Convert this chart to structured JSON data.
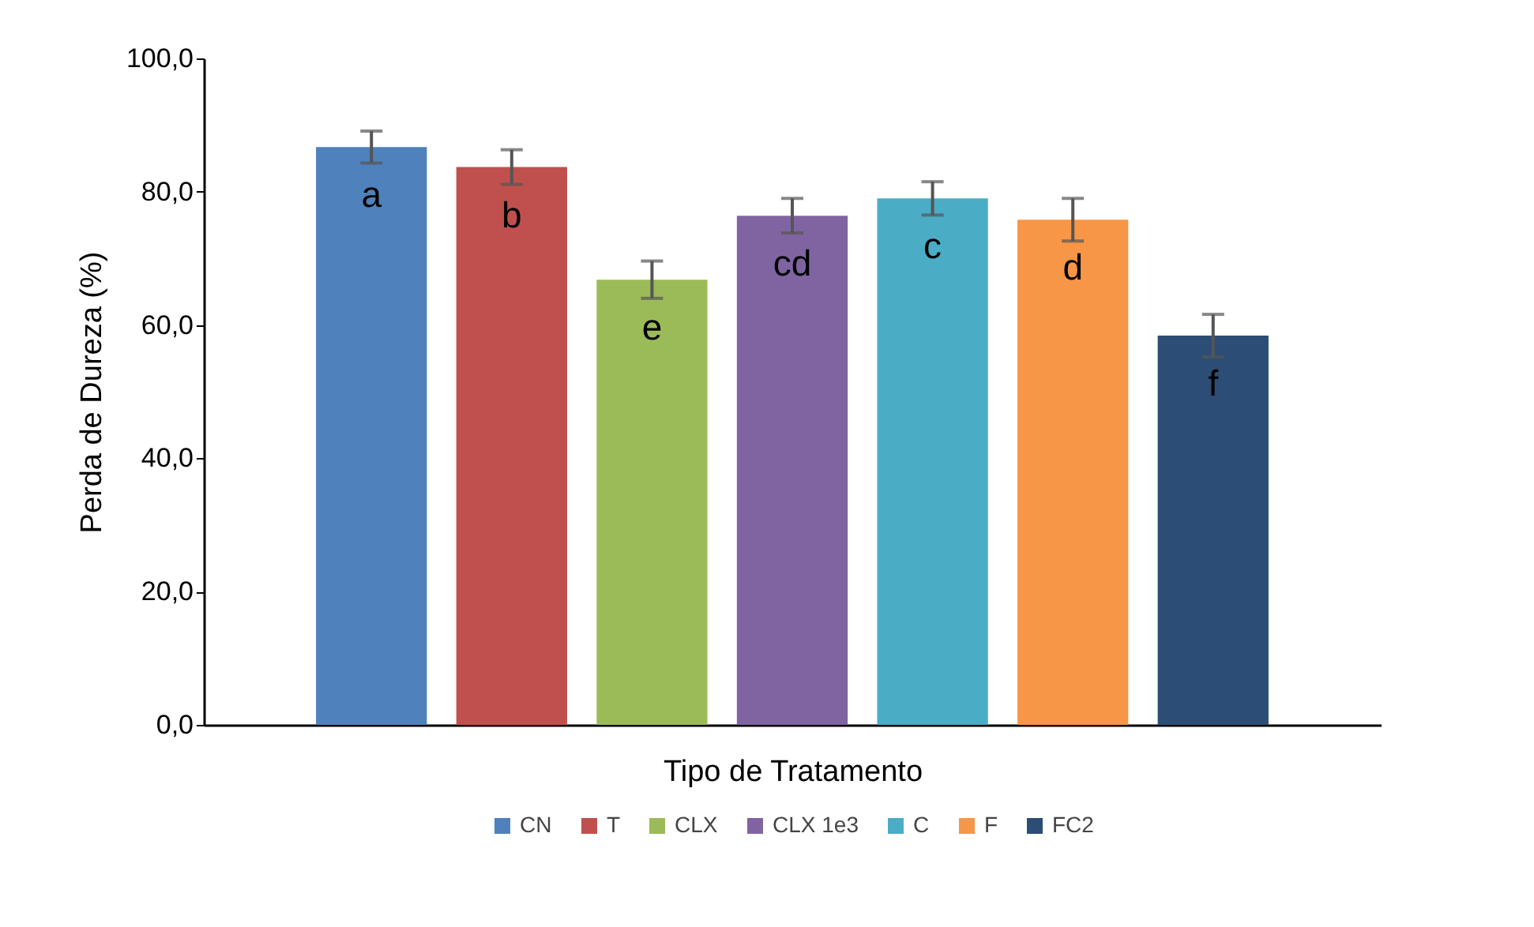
{
  "chart_data": {
    "type": "bar",
    "xlabel": "Tipo de Tratamento",
    "ylabel": "Perda de Dureza (%)",
    "categories": [
      null,
      null,
      null,
      null,
      null,
      null,
      null
    ],
    "series": [
      {
        "name": "CN",
        "color": "#4f81bd",
        "values": [
          86.7,
          null,
          null,
          null,
          null,
          null,
          null
        ],
        "errors": [
          2.4,
          null,
          null,
          null,
          null,
          null,
          null
        ],
        "value_labels": [
          "a",
          null,
          null,
          null,
          null,
          null,
          null
        ]
      },
      {
        "name": "T",
        "color": "#c0504d",
        "values": [
          null,
          83.7,
          null,
          null,
          null,
          null,
          null
        ],
        "errors": [
          null,
          2.6,
          null,
          null,
          null,
          null,
          null
        ],
        "value_labels": [
          null,
          "b",
          null,
          null,
          null,
          null,
          null
        ]
      },
      {
        "name": "CLX",
        "color": "#9bbb59",
        "values": [
          null,
          null,
          66.8,
          null,
          null,
          null,
          null
        ],
        "errors": [
          null,
          null,
          2.8,
          null,
          null,
          null,
          null
        ],
        "value_labels": [
          null,
          null,
          "e",
          null,
          null,
          null,
          null
        ]
      },
      {
        "name": "CLX 1e3",
        "color": "#8064a2",
        "values": [
          null,
          null,
          null,
          76.4,
          null,
          null,
          null
        ],
        "errors": [
          null,
          null,
          null,
          2.6,
          null,
          null,
          null
        ],
        "value_labels": [
          null,
          null,
          null,
          "cd",
          null,
          null,
          null
        ]
      },
      {
        "name": "C",
        "color": "#4bacc6",
        "values": [
          null,
          null,
          null,
          null,
          79.0,
          null,
          null
        ],
        "errors": [
          null,
          null,
          null,
          null,
          2.5,
          null,
          null
        ],
        "value_labels": [
          null,
          null,
          null,
          null,
          "c",
          null,
          null
        ]
      },
      {
        "name": "F",
        "color": "#f79646",
        "values": [
          null,
          null,
          null,
          null,
          null,
          75.8,
          null
        ],
        "errors": [
          null,
          null,
          null,
          null,
          null,
          3.2,
          null
        ],
        "value_labels": [
          null,
          null,
          null,
          null,
          null,
          "d",
          null
        ]
      },
      {
        "name": "FC2",
        "color": "#2c4d75",
        "values": [
          null,
          null,
          null,
          null,
          null,
          null,
          58.4
        ],
        "errors": [
          null,
          null,
          null,
          null,
          null,
          null,
          3.2
        ],
        "value_labels": [
          null,
          null,
          null,
          null,
          null,
          null,
          "f"
        ]
      }
    ],
    "ylim": [
      0,
      100
    ],
    "yticks": [
      {
        "value": 0,
        "label": "0,0"
      },
      {
        "value": 20,
        "label": "20,0"
      },
      {
        "value": 40,
        "label": "40,0"
      },
      {
        "value": 60,
        "label": "60,0"
      },
      {
        "value": 80,
        "label": "80,0"
      },
      {
        "value": 100,
        "label": "100,0"
      }
    ],
    "legend": "bottom"
  }
}
